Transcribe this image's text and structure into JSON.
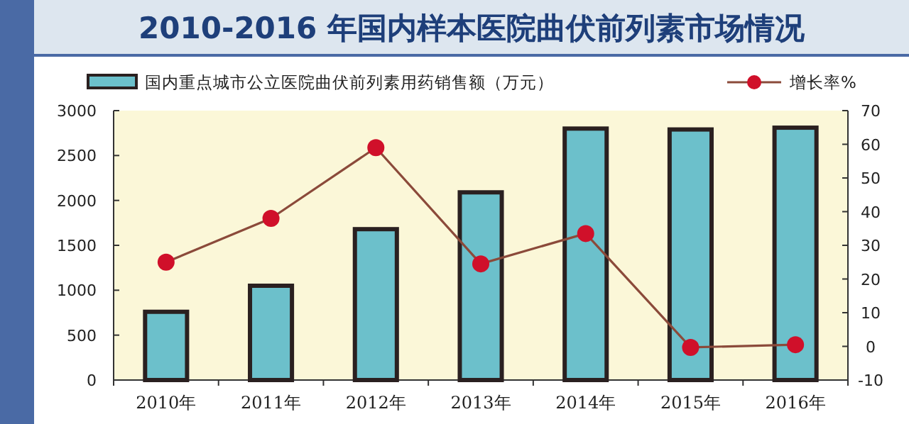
{
  "chart_data": {
    "type": "bar",
    "title": "2010-2016 年国内样本医院曲伏前列素市场情况",
    "categories": [
      "2010年",
      "2011年",
      "2012年",
      "2013年",
      "2014年",
      "2015年",
      "2016年"
    ],
    "series": [
      {
        "name": "国内重点城市公立医院曲伏前列素用药销售额（万元）",
        "color": "#6cc0cb",
        "values": [
          760,
          1050,
          1680,
          2090,
          2800,
          2790,
          2810
        ]
      },
      {
        "name": "增长率%",
        "type": "line",
        "axis": "y2",
        "color": "#d0102a",
        "values": [
          25,
          38,
          59,
          24.5,
          33.5,
          -0.3,
          0.5
        ]
      }
    ],
    "ylim": [
      0,
      3000
    ],
    "yticks": [
      0,
      500,
      1000,
      1500,
      2000,
      2500,
      3000
    ],
    "y2lim": [
      -10,
      70
    ],
    "y2ticks": [
      -10,
      0,
      10,
      20,
      30,
      40,
      50,
      60,
      70
    ],
    "legend": "top",
    "marker": "circle"
  }
}
